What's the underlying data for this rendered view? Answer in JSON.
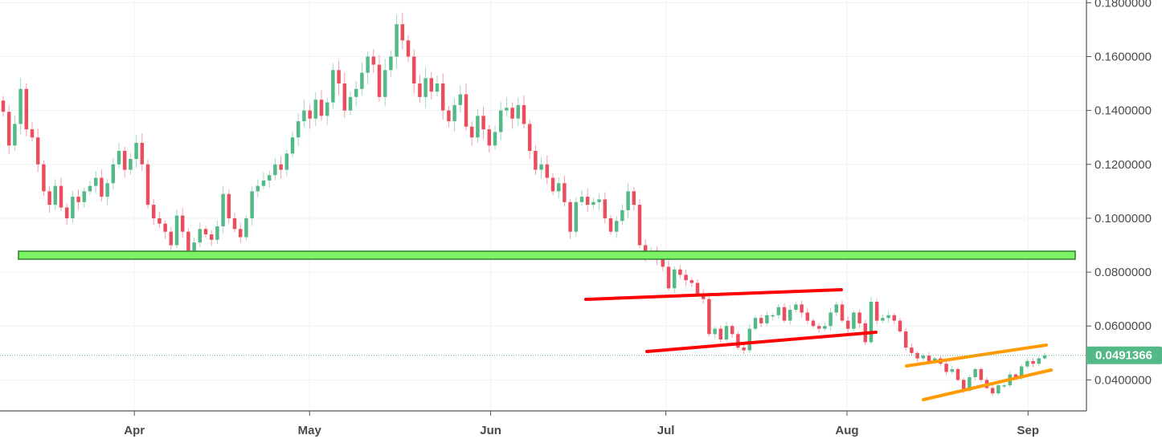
{
  "colors": {
    "up": "#53b987",
    "down": "#eb4d5c",
    "grid": "#eef2f6",
    "axis": "#555555",
    "support_fill": "#7cf267",
    "support_border": "#2e7d2e",
    "red_channel": "#ff0000",
    "orange_channel": "#ff9a00",
    "last_price_line": "#53b987"
  },
  "chart_data": {
    "type": "candlestick",
    "title": "",
    "xlabel": "",
    "ylabel": "",
    "x_ticks": [
      {
        "label": "Apr",
        "date": "2018-04-01"
      },
      {
        "label": "May",
        "date": "2018-05-01"
      },
      {
        "label": "Jun",
        "date": "2018-06-01"
      },
      {
        "label": "Jul",
        "date": "2018-07-01"
      },
      {
        "label": "Aug",
        "date": "2018-08-01"
      },
      {
        "label": "Sep",
        "date": "2018-09-01"
      }
    ],
    "x_range": [
      "2018-03-09",
      "2018-09-11"
    ],
    "y_ticks": [
      "0.1800000",
      "0.1600000",
      "0.1400000",
      "0.1200000",
      "0.1000000",
      "0.0800000",
      "0.0600000",
      "0.0400000"
    ],
    "y_tick_values": [
      0.18,
      0.16,
      0.14,
      0.12,
      0.1,
      0.08,
      0.06,
      0.04
    ],
    "ylim": [
      0.0285,
      0.181
    ],
    "last_price": {
      "label": "0.0491366",
      "value": 0.0491366
    },
    "close": [
      0.1395,
      0.127,
      0.135,
      0.148,
      0.133,
      0.13,
      0.12,
      0.11,
      0.105,
      0.112,
      0.104,
      0.1,
      0.108,
      0.106,
      0.11,
      0.112,
      0.115,
      0.108,
      0.113,
      0.12,
      0.125,
      0.118,
      0.122,
      0.128,
      0.12,
      0.105,
      0.1,
      0.098,
      0.095,
      0.09,
      0.101,
      0.095,
      0.088,
      0.091,
      0.096,
      0.094,
      0.092,
      0.097,
      0.109,
      0.1,
      0.096,
      0.093,
      0.1,
      0.11,
      0.112,
      0.114,
      0.116,
      0.12,
      0.118,
      0.124,
      0.13,
      0.136,
      0.14,
      0.137,
      0.144,
      0.138,
      0.143,
      0.155,
      0.15,
      0.14,
      0.145,
      0.148,
      0.154,
      0.16,
      0.157,
      0.145,
      0.155,
      0.16,
      0.172,
      0.166,
      0.16,
      0.15,
      0.145,
      0.152,
      0.147,
      0.15,
      0.14,
      0.136,
      0.142,
      0.146,
      0.134,
      0.13,
      0.138,
      0.133,
      0.127,
      0.132,
      0.14,
      0.141,
      0.137,
      0.142,
      0.135,
      0.125,
      0.118,
      0.12,
      0.115,
      0.11,
      0.113,
      0.106,
      0.095,
      0.106,
      0.108,
      0.105,
      0.106,
      0.107,
      0.1,
      0.095,
      0.099,
      0.103,
      0.11,
      0.105,
      0.09,
      0.086,
      0.088,
      0.085,
      0.082,
      0.074,
      0.081,
      0.079,
      0.077,
      0.076,
      0.072,
      0.07,
      0.057,
      0.059,
      0.055,
      0.06,
      0.057,
      0.052,
      0.051,
      0.059,
      0.063,
      0.061,
      0.064,
      0.064,
      0.067,
      0.062,
      0.066,
      0.068,
      0.065,
      0.062,
      0.06,
      0.059,
      0.06,
      0.065,
      0.068,
      0.062,
      0.059,
      0.065,
      0.061,
      0.054,
      0.069,
      0.062,
      0.063,
      0.064,
      0.062,
      0.058,
      0.052,
      0.05,
      0.048,
      0.049,
      0.047,
      0.048,
      0.046,
      0.043,
      0.044,
      0.04,
      0.036,
      0.041,
      0.044,
      0.04,
      0.037,
      0.035,
      0.038,
      0.038,
      0.042,
      0.041,
      0.045,
      0.047,
      0.046,
      0.048,
      0.0491
    ]
  }
}
